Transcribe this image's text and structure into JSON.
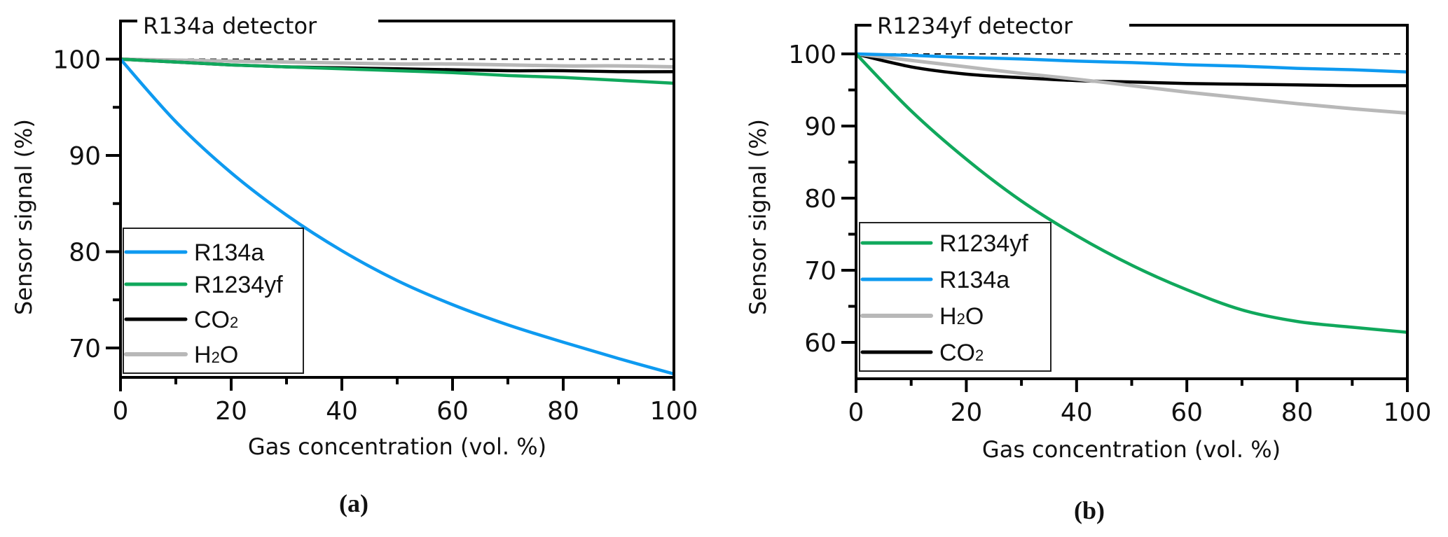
{
  "chart_data": [
    {
      "type": "line",
      "panel_label": "(a)",
      "title": "R134a detector",
      "xlabel": "Gas concentration (vol. %)",
      "ylabel": "Sensor signal (%)",
      "xlim": [
        0,
        100
      ],
      "ylim": [
        67.1,
        103.9
      ],
      "xticks": [
        0,
        20,
        40,
        60,
        80,
        100
      ],
      "yticks": [
        70,
        80,
        90,
        100
      ],
      "reference_line": {
        "y": 100,
        "style": "dashed"
      },
      "grid": false,
      "legend_position": "bottom-left",
      "x": [
        0,
        10,
        20,
        30,
        40,
        50,
        60,
        70,
        80,
        90,
        100
      ],
      "series": [
        {
          "name": "R134a",
          "color": "#0e9af0",
          "values": [
            100,
            93.5,
            88.2,
            83.8,
            80.1,
            77.0,
            74.5,
            72.4,
            70.6,
            68.9,
            67.3
          ]
        },
        {
          "name": "R1234yf",
          "color": "#10a85c",
          "values": [
            100,
            99.7,
            99.4,
            99.2,
            99.0,
            98.8,
            98.6,
            98.3,
            98.1,
            97.8,
            97.5
          ]
        },
        {
          "name": "CO2",
          "color": "#000000",
          "values": [
            100,
            99.7,
            99.4,
            99.2,
            99.1,
            99.0,
            98.9,
            98.8,
            98.8,
            98.7,
            98.7
          ]
        },
        {
          "name": "H2O",
          "color": "#b8b8b8",
          "values": [
            100,
            99.9,
            99.8,
            99.7,
            99.6,
            99.5,
            99.5,
            99.4,
            99.3,
            99.3,
            99.2
          ]
        }
      ],
      "legend": [
        {
          "label_main": "R134a",
          "label_sub": "",
          "label_tail": "",
          "color": "#0e9af0"
        },
        {
          "label_main": "R1234yf",
          "label_sub": "",
          "label_tail": "",
          "color": "#10a85c"
        },
        {
          "label_main": "CO",
          "label_sub": "2",
          "label_tail": "",
          "color": "#000000"
        },
        {
          "label_main": "H",
          "label_sub": "2",
          "label_tail": "O",
          "color": "#b8b8b8"
        }
      ]
    },
    {
      "type": "line",
      "panel_label": "(b)",
      "title": "R1234yf detector",
      "xlabel": "Gas concentration (vol. %)",
      "ylabel": "Sensor signal (%)",
      "xlim": [
        0,
        100
      ],
      "ylim": [
        54.9,
        104
      ],
      "xticks": [
        0,
        20,
        40,
        60,
        80,
        100
      ],
      "yticks": [
        60,
        70,
        80,
        90,
        100
      ],
      "reference_line": {
        "y": 100,
        "style": "dashed"
      },
      "grid": false,
      "legend_position": "bottom-left",
      "x": [
        0,
        10,
        20,
        30,
        40,
        50,
        60,
        70,
        80,
        90,
        100
      ],
      "series": [
        {
          "name": "R1234yf",
          "color": "#10a85c",
          "values": [
            100,
            92.1,
            85.4,
            79.6,
            74.8,
            70.7,
            67.3,
            64.5,
            62.9,
            62.1,
            61.4
          ]
        },
        {
          "name": "R134a",
          "color": "#0e9af0",
          "values": [
            100,
            99.8,
            99.5,
            99.3,
            99.0,
            98.8,
            98.5,
            98.3,
            98.0,
            97.8,
            97.5
          ]
        },
        {
          "name": "H2O",
          "color": "#b8b8b8",
          "values": [
            100,
            99.1,
            98.2,
            97.3,
            96.5,
            95.6,
            94.7,
            93.9,
            93.1,
            92.4,
            91.8
          ]
        },
        {
          "name": "CO2",
          "color": "#000000",
          "values": [
            100,
            98.2,
            97.2,
            96.7,
            96.3,
            96.1,
            95.9,
            95.8,
            95.7,
            95.6,
            95.6
          ]
        }
      ],
      "legend": [
        {
          "label_main": "R1234yf",
          "label_sub": "",
          "label_tail": "",
          "color": "#10a85c"
        },
        {
          "label_main": "R134a",
          "label_sub": "",
          "label_tail": "",
          "color": "#0e9af0"
        },
        {
          "label_main": "H",
          "label_sub": "2",
          "label_tail": "O",
          "color": "#b8b8b8"
        },
        {
          "label_main": "CO",
          "label_sub": "2",
          "label_tail": "",
          "color": "#000000"
        }
      ]
    }
  ]
}
